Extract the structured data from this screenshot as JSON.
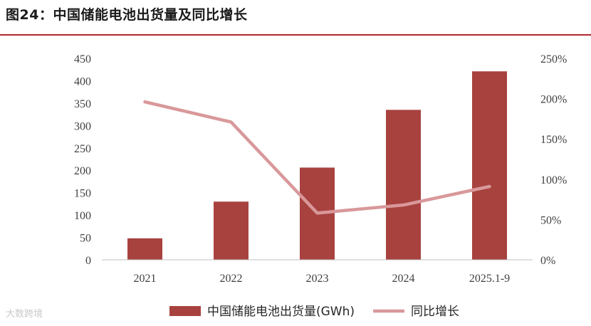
{
  "header": {
    "title": "图24：中国储能电池出货量及同比增长"
  },
  "watermark": "大数跨境",
  "chart_data": {
    "type": "bar",
    "categories": [
      "2021",
      "2022",
      "2023",
      "2024",
      "2025.1-9"
    ],
    "series": [
      {
        "name": "中国储能电池出货量(GWh)",
        "type": "bar",
        "axis": "left",
        "values": [
          48,
          130,
          206,
          335,
          421
        ],
        "color": "#a8423f"
      },
      {
        "name": "同比增长",
        "type": "line",
        "axis": "right",
        "values": [
          196,
          171,
          58,
          68,
          91
        ],
        "color": "#d9989a"
      }
    ],
    "ylim_left": [
      0,
      450
    ],
    "yticks_left": [
      "0",
      "50",
      "100",
      "150",
      "200",
      "250",
      "300",
      "350",
      "400",
      "450"
    ],
    "ylim_right": [
      0,
      250
    ],
    "yticks_right": [
      "0%",
      "50%",
      "100%",
      "150%",
      "200%",
      "250%"
    ],
    "legend": "bottom",
    "grid": false
  }
}
